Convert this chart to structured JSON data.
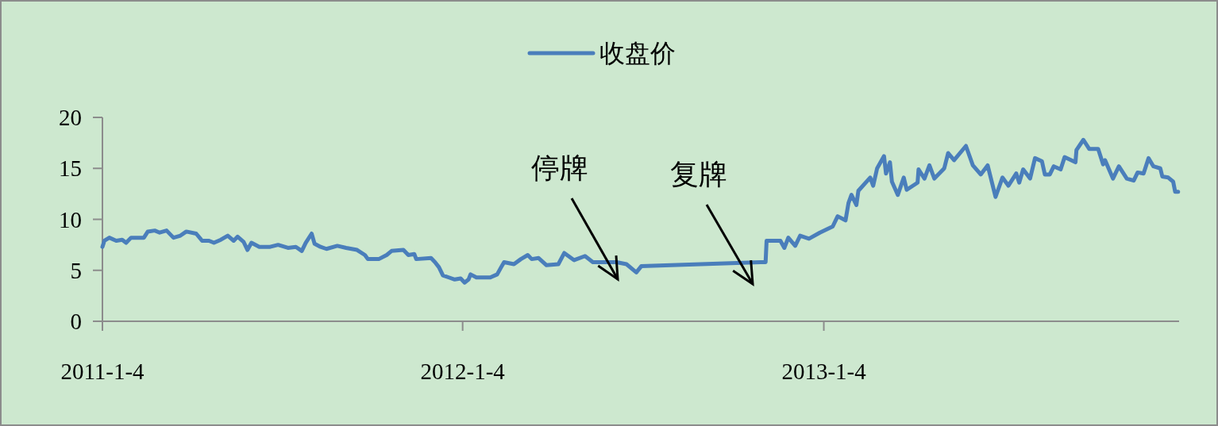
{
  "chart_data": {
    "type": "line",
    "legend": "top",
    "x": [
      "2011-01-04",
      "2011-01-06",
      "2011-01-11",
      "2011-01-18",
      "2011-01-24",
      "2011-01-28",
      "2011-02-02",
      "2011-02-15",
      "2011-02-19",
      "2011-02-26",
      "2011-03-03",
      "2011-03-10",
      "2011-03-17",
      "2011-03-24",
      "2011-03-30",
      "2011-04-09",
      "2011-04-15",
      "2011-04-22",
      "2011-04-27",
      "2011-05-04",
      "2011-05-11",
      "2011-05-17",
      "2011-05-21",
      "2011-05-27",
      "2011-05-31",
      "2011-06-04",
      "2011-06-12",
      "2011-06-23",
      "2011-07-01",
      "2011-07-11",
      "2011-07-19",
      "2011-07-25",
      "2011-07-29",
      "2011-08-04",
      "2011-08-07",
      "2011-08-13",
      "2011-08-19",
      "2011-08-30",
      "2011-09-08",
      "2011-09-19",
      "2011-09-27",
      "2011-09-30",
      "2011-10-11",
      "2011-10-19",
      "2011-10-24",
      "2011-11-05",
      "2011-11-10",
      "2011-11-16",
      "2011-11-18",
      "2011-12-03",
      "2011-12-07",
      "2011-12-11",
      "2011-12-15",
      "2011-12-21",
      "2011-12-27",
      "2012-01-02",
      "2012-01-06",
      "2012-01-10",
      "2012-01-12",
      "2012-01-18",
      "2012-01-20",
      "2012-02-01",
      "2012-02-08",
      "2012-02-12",
      "2012-02-15",
      "2012-02-25",
      "2012-03-03",
      "2012-03-10",
      "2012-03-14",
      "2012-03-21",
      "2012-03-29",
      "2012-04-10",
      "2012-04-16",
      "2012-04-26",
      "2012-05-07",
      "2012-05-15",
      "2012-05-28",
      "2012-06-08",
      "2012-06-18",
      "2012-06-28",
      "2012-07-03",
      "2012-11-01",
      "2012-11-06",
      "2012-11-07",
      "2012-11-21",
      "2012-11-25",
      "2012-11-29",
      "2012-12-06",
      "2012-12-11",
      "2012-12-20",
      "2012-12-31",
      "2013-01-13",
      "2013-01-18",
      "2013-01-26",
      "2013-01-29",
      "2013-02-01",
      "2013-02-06",
      "2013-02-08",
      "2013-02-20",
      "2013-02-23",
      "2013-02-27",
      "2013-03-06",
      "2013-03-08",
      "2013-03-12",
      "2013-03-14",
      "2013-03-20",
      "2013-03-26",
      "2013-03-29",
      "2013-04-09",
      "2013-04-10",
      "2013-04-16",
      "2013-04-21",
      "2013-04-26",
      "2013-05-06",
      "2013-05-10",
      "2013-05-16",
      "2013-05-28",
      "2013-06-04",
      "2013-06-12",
      "2013-06-19",
      "2013-06-27",
      "2013-07-04",
      "2013-07-10",
      "2013-07-18",
      "2013-07-21",
      "2013-07-25",
      "2013-08-01",
      "2013-08-06",
      "2013-08-13",
      "2013-08-16",
      "2013-08-21",
      "2013-08-25",
      "2013-09-01",
      "2013-09-05",
      "2013-09-16",
      "2013-09-17",
      "2013-09-24",
      "2013-09-30",
      "2013-10-09",
      "2013-10-14",
      "2013-10-16",
      "2013-10-24",
      "2013-10-30",
      "2013-11-07",
      "2013-11-14",
      "2013-11-18",
      "2013-11-24",
      "2013-11-29",
      "2013-12-04",
      "2013-12-11",
      "2013-12-13",
      "2013-12-19",
      "2013-12-24",
      "2013-12-26",
      "2013-12-29"
    ],
    "series": [
      {
        "name": "收盘价",
        "color": "#4a7ebb",
        "values": [
          7.3,
          7.9,
          8.2,
          7.9,
          8.0,
          7.7,
          8.2,
          8.2,
          8.8,
          8.9,
          8.7,
          8.9,
          8.2,
          8.4,
          8.8,
          8.6,
          7.9,
          7.9,
          7.7,
          8.0,
          8.4,
          7.9,
          8.3,
          7.8,
          7.0,
          7.7,
          7.3,
          7.3,
          7.5,
          7.2,
          7.3,
          6.9,
          7.7,
          8.6,
          7.6,
          7.3,
          7.1,
          7.4,
          7.2,
          7.0,
          6.5,
          6.1,
          6.1,
          6.5,
          6.9,
          7.0,
          6.5,
          6.6,
          6.1,
          6.2,
          5.8,
          5.3,
          4.5,
          4.3,
          4.1,
          4.2,
          3.8,
          4.1,
          4.6,
          4.3,
          4.3,
          4.3,
          4.6,
          5.3,
          5.8,
          5.6,
          6.1,
          6.5,
          6.1,
          6.2,
          5.5,
          5.6,
          6.7,
          6.0,
          6.4,
          5.8,
          5.8,
          5.8,
          5.6,
          4.8,
          5.4,
          5.8,
          5.8,
          7.9,
          7.9,
          7.2,
          8.2,
          7.4,
          8.4,
          8.1,
          8.7,
          9.3,
          10.3,
          9.9,
          11.6,
          12.4,
          11.4,
          12.8,
          14.1,
          13.3,
          15.0,
          16.2,
          14.5,
          15.6,
          13.7,
          12.4,
          14.1,
          12.9,
          13.6,
          14.9,
          14.0,
          15.3,
          14.0,
          15.0,
          16.5,
          15.8,
          17.2,
          15.3,
          14.4,
          15.3,
          12.2,
          14.1,
          13.3,
          14.5,
          13.6,
          14.9,
          14.0,
          16.0,
          15.7,
          14.4,
          14.4,
          15.2,
          14.9,
          16.1,
          15.6,
          16.8,
          17.8,
          16.9,
          16.9,
          15.4,
          15.8,
          14.0,
          15.2,
          14.0,
          13.8,
          14.6,
          14.5,
          16.0,
          15.2,
          15.0,
          14.2,
          14.1,
          13.7,
          12.7,
          12.7
        ]
      }
    ],
    "xlim": [
      "2011-01-04",
      "2013-12-30"
    ],
    "xticks": [
      {
        "value": "2011-01-04",
        "label": "2011-1-4"
      },
      {
        "value": "2012-01-04",
        "label": "2012-1-4"
      },
      {
        "value": "2013-01-04",
        "label": "2013-1-4"
      }
    ],
    "ylim": [
      0,
      20
    ],
    "yticks": [
      0,
      5,
      10,
      15,
      20
    ],
    "annotations": [
      "停牌",
      "复牌"
    ]
  }
}
